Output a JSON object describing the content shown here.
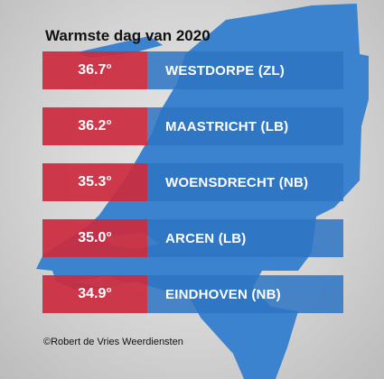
{
  "title": "Warmste dag van 2020",
  "rows": [
    {
      "temperature": "36.7°",
      "location": "WESTDORPE (ZL)"
    },
    {
      "temperature": "36.2°",
      "location": "MAASTRICHT (LB)"
    },
    {
      "temperature": "35.3°",
      "location": "WOENSDRECHT (NB)"
    },
    {
      "temperature": "35.0°",
      "location": "ARCEN (LB)"
    },
    {
      "temperature": "34.9°",
      "location": "EINDHOVEN (NB)"
    }
  ],
  "credit": "©Robert de Vries Weerdiensten",
  "colors": {
    "temperature_bg": "#cb2c3e",
    "location_bg": "#2d76c4",
    "map_fill": "#3b82cf"
  }
}
